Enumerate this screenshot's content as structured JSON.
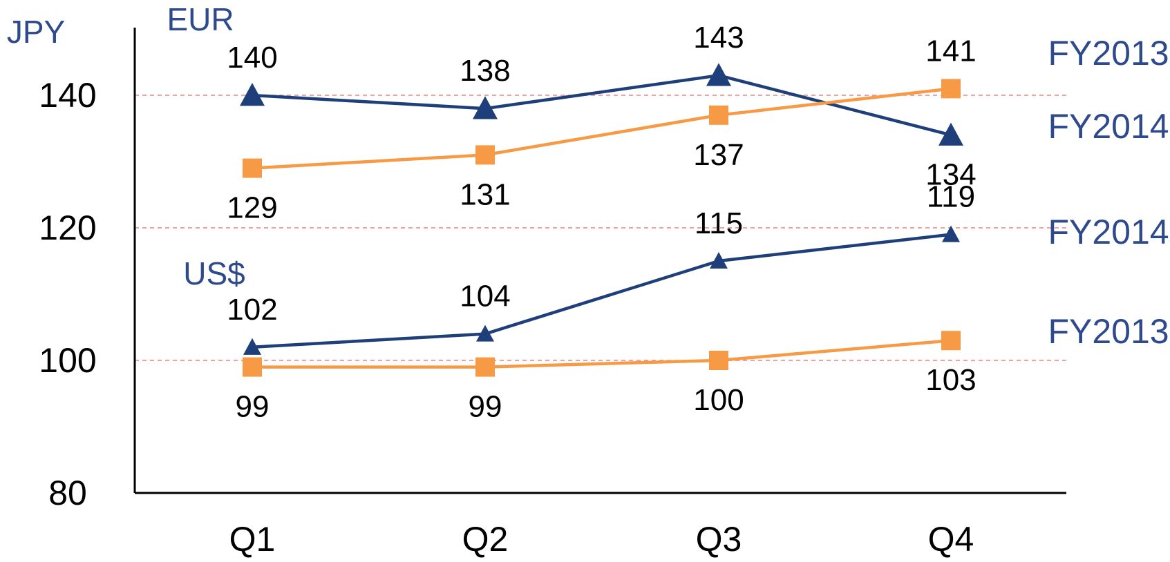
{
  "chart_data": {
    "type": "line",
    "ylabel": "JPY",
    "ylim": [
      80,
      150
    ],
    "yticks": [
      80,
      100,
      120,
      140
    ],
    "gridlines": [
      100,
      120,
      140
    ],
    "categories": [
      "Q1",
      "Q2",
      "Q3",
      "Q4"
    ],
    "groups": [
      {
        "label": "EUR",
        "currency": "EUR"
      },
      {
        "label": "US$",
        "currency": "USD"
      }
    ],
    "series": [
      {
        "name": "FY2014",
        "currency": "EUR",
        "marker": "triangle",
        "color": "#1f3f7a",
        "values": [
          140,
          138,
          143,
          134
        ],
        "label_pos": [
          "above",
          "above",
          "above",
          "below"
        ]
      },
      {
        "name": "FY2013",
        "currency": "EUR",
        "marker": "square",
        "color": "#f79a45",
        "values": [
          129,
          131,
          137,
          141
        ],
        "label_pos": [
          "below",
          "below",
          "below",
          "above"
        ]
      },
      {
        "name": "FY2014",
        "currency": "USD",
        "marker": "triangle",
        "color": "#1f3f7a",
        "values": [
          102,
          104,
          115,
          119
        ],
        "label_pos": [
          "above",
          "above",
          "above",
          "above"
        ]
      },
      {
        "name": "FY2013",
        "currency": "USD",
        "marker": "square",
        "color": "#f79a45",
        "values": [
          99,
          99,
          100,
          103
        ],
        "label_pos": [
          "below",
          "below",
          "below",
          "below"
        ]
      }
    ],
    "legend_entries": [
      "FY2013",
      "FY2014",
      "FY2014",
      "FY2013"
    ],
    "grid": true,
    "gridline_color": "#f08080",
    "legend_placement": "right"
  }
}
